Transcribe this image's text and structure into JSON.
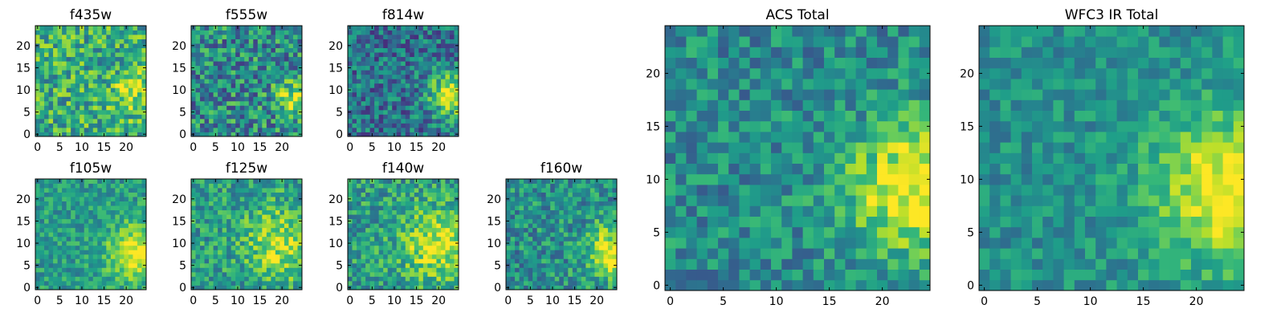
{
  "chart_data": [
    {
      "type": "heatmap",
      "title": "f435w",
      "grid": 25,
      "xticks": [
        "0",
        "5",
        "10",
        "15",
        "20"
      ],
      "yticks": [
        "0",
        "5",
        "10",
        "15",
        "20"
      ],
      "seed": 11,
      "hot": {
        "x": 22,
        "y": 9,
        "radius": 5,
        "strength": 0.25
      },
      "base": 0.62,
      "noise": 0.55
    },
    {
      "type": "heatmap",
      "title": "f555w",
      "grid": 25,
      "xticks": [
        "0",
        "5",
        "10",
        "15",
        "20"
      ],
      "yticks": [
        "0",
        "5",
        "10",
        "15",
        "20"
      ],
      "seed": 23,
      "hot": {
        "x": 23,
        "y": 8,
        "radius": 4,
        "strength": 0.45
      },
      "base": 0.48,
      "noise": 0.6
    },
    {
      "type": "heatmap",
      "title": "f814w",
      "grid": 25,
      "xticks": [
        "0",
        "5",
        "10",
        "15",
        "20"
      ],
      "yticks": [
        "0",
        "5",
        "10",
        "15",
        "20"
      ],
      "seed": 37,
      "hot": {
        "x": 23,
        "y": 9,
        "radius": 5,
        "strength": 0.6
      },
      "base": 0.38,
      "noise": 0.5
    },
    {
      "type": "heatmap",
      "title": "f105w",
      "grid": 25,
      "xticks": [
        "0",
        "5",
        "10",
        "15",
        "20"
      ],
      "yticks": [
        "0",
        "5",
        "10",
        "15",
        "20"
      ],
      "seed": 41,
      "hot": {
        "x": 22,
        "y": 8,
        "radius": 6,
        "strength": 0.45
      },
      "base": 0.55,
      "noise": 0.35
    },
    {
      "type": "heatmap",
      "title": "f125w",
      "grid": 25,
      "xticks": [
        "0",
        "5",
        "10",
        "15",
        "20"
      ],
      "yticks": [
        "0",
        "5",
        "10",
        "15",
        "20"
      ],
      "seed": 53,
      "hot": {
        "x": 20,
        "y": 10,
        "radius": 8,
        "strength": 0.35
      },
      "base": 0.55,
      "noise": 0.45
    },
    {
      "type": "heatmap",
      "title": "f140w",
      "grid": 25,
      "xticks": [
        "0",
        "5",
        "10",
        "15",
        "20"
      ],
      "yticks": [
        "0",
        "5",
        "10",
        "15",
        "20"
      ],
      "seed": 67,
      "hot": {
        "x": 20,
        "y": 10,
        "radius": 8,
        "strength": 0.4
      },
      "base": 0.55,
      "noise": 0.45
    },
    {
      "type": "heatmap",
      "title": "f160w",
      "grid": 25,
      "xticks": [
        "0",
        "5",
        "10",
        "15",
        "20"
      ],
      "yticks": [
        "0",
        "5",
        "10",
        "15",
        "20"
      ],
      "seed": 79,
      "hot": {
        "x": 24,
        "y": 8,
        "radius": 6,
        "strength": 0.5
      },
      "base": 0.5,
      "noise": 0.45
    },
    {
      "type": "heatmap",
      "title": "ACS Total",
      "grid": 25,
      "xticks": [
        "0",
        "5",
        "10",
        "15",
        "20"
      ],
      "yticks": [
        "0",
        "5",
        "10",
        "15",
        "20"
      ],
      "seed": 97,
      "hot": {
        "x": 23,
        "y": 9,
        "radius": 6,
        "strength": 0.55
      },
      "base": 0.48,
      "noise": 0.4
    },
    {
      "type": "heatmap",
      "title": "WFC3 IR Total",
      "grid": 25,
      "xticks": [
        "0",
        "5",
        "10",
        "15",
        "20"
      ],
      "yticks": [
        "0",
        "5",
        "10",
        "15",
        "20"
      ],
      "seed": 113,
      "hot": {
        "x": 23,
        "y": 9,
        "radius": 7,
        "strength": 0.5
      },
      "base": 0.5,
      "noise": 0.3
    }
  ],
  "colormap": [
    "#440154",
    "#482878",
    "#3e4989",
    "#31688e",
    "#26828e",
    "#1f9e89",
    "#35b779",
    "#6ece58",
    "#b5de2b",
    "#fde725"
  ]
}
